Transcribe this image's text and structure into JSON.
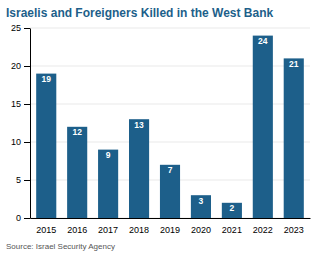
{
  "chart_data": {
    "type": "bar",
    "title": "Israelis and Foreigners Killed in the West Bank",
    "source": "Source: Israel Security Agency",
    "categories": [
      "2015",
      "2016",
      "2017",
      "2018",
      "2019",
      "2020",
      "2021",
      "2022",
      "2023"
    ],
    "values": [
      19,
      12,
      9,
      13,
      7,
      3,
      2,
      24,
      21
    ],
    "color": "#1d5f8a",
    "ylim": [
      0,
      25
    ],
    "yticks": [
      0,
      5,
      10,
      15,
      20,
      25
    ],
    "grid": true,
    "data_labels": true
  }
}
